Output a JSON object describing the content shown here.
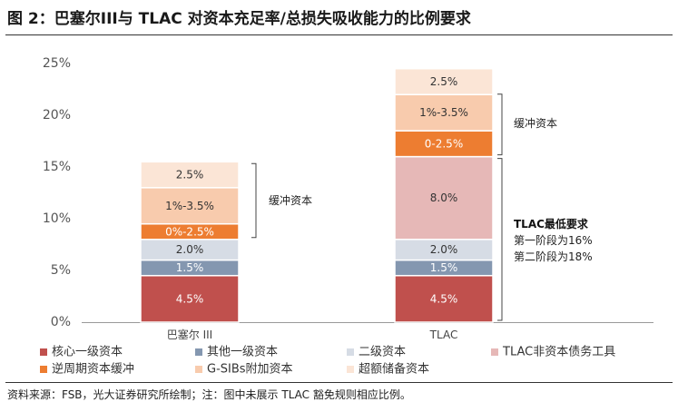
{
  "title": "图 2：巴塞尔III与 TLAC 对资本充足率/总损失吸收能力的比例要求",
  "source": "资料来源：FSB，光大证券研究所绘制；注：图中未展示 TLAC 豁免规则相应比例。",
  "colors": {
    "core": "#c0504d",
    "other_t1": "#8497b0",
    "tier2": "#d6dce5",
    "tlac_nc": "#e6b8b7",
    "ccyb": "#ed7d31",
    "gsib": "#f8cbad",
    "super": "#fbe5d6"
  },
  "chart_data": {
    "type": "bar",
    "stacked": true,
    "categories": [
      "巴塞尔 III",
      "TLAC"
    ],
    "ylim": [
      0,
      25
    ],
    "yticks": [
      "0%",
      "5%",
      "10%",
      "15%",
      "20%",
      "25%"
    ],
    "grid": false,
    "legend_position": "bottom",
    "series": [
      {
        "key": "core",
        "name": "核心一级资本",
        "values": [
          4.5,
          4.5
        ],
        "labels": [
          "4.5%",
          "4.5%"
        ],
        "label_color": "#ffffff"
      },
      {
        "key": "other_t1",
        "name": "其他一级资本",
        "values": [
          1.5,
          1.5
        ],
        "labels": [
          "1.5%",
          "1.5%"
        ],
        "label_color": "#ffffff"
      },
      {
        "key": "tier2",
        "name": "二级资本",
        "values": [
          2.0,
          2.0
        ],
        "labels": [
          "2.0%",
          "2.0%"
        ],
        "label_color": "#333333"
      },
      {
        "key": "tlac_nc",
        "name": "TLAC非资本债务工具",
        "values": [
          0,
          8.0
        ],
        "labels": [
          "",
          "8.0%"
        ],
        "label_color": "#333333"
      },
      {
        "key": "ccyb",
        "name": "逆周期资本缓冲",
        "values": [
          1.5,
          2.5
        ],
        "labels": [
          "0%-2.5%",
          "0-2.5%"
        ],
        "label_color": "#ffffff"
      },
      {
        "key": "gsib",
        "name": "G-SIBs附加资本",
        "values": [
          3.5,
          3.5
        ],
        "labels": [
          "1%-3.5%",
          "1%-3.5%"
        ],
        "label_color": "#333333"
      },
      {
        "key": "super",
        "name": "超额储备资本",
        "values": [
          2.5,
          2.5
        ],
        "labels": [
          "2.5%",
          "2.5%"
        ],
        "label_color": "#333333"
      }
    ],
    "annotations": {
      "basel_buffer": "缓冲资本",
      "tlac_buffer": "缓冲资本",
      "tlac_min_title": "TLAC最低要求",
      "tlac_min_line1": "第一阶段为16%",
      "tlac_min_line2": "第二阶段为18%"
    }
  }
}
